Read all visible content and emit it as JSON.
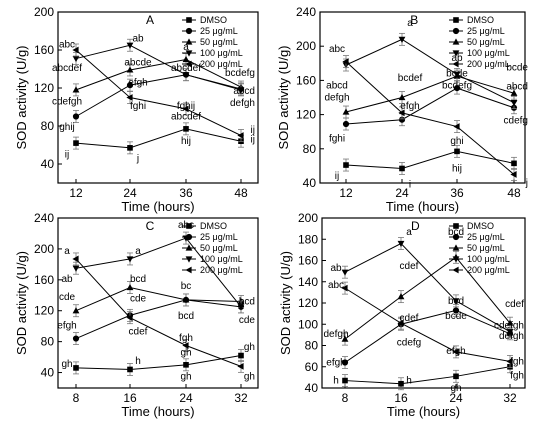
{
  "chart_data": [
    {
      "type": "line",
      "panel": "A",
      "title": "A",
      "xlabel": "Time (hours)",
      "ylabel": "SOD activity (U/g)",
      "categories": [
        "12",
        "24",
        "36",
        "48"
      ],
      "ylim": [
        20,
        200
      ],
      "yticks": [
        "40",
        "80",
        "120",
        "160",
        "200"
      ],
      "legend_position": "top-right",
      "series": [
        {
          "name": "DMSO",
          "marker": "square",
          "values": [
            62,
            57,
            77,
            64
          ]
        },
        {
          "name": "25  μg/mL",
          "marker": "circle",
          "values": [
            90,
            123,
            134,
            119
          ]
        },
        {
          "name": "50  μg/mL",
          "marker": "up-triangle",
          "values": [
            118,
            139,
            150,
            121
          ]
        },
        {
          "name": "100 μg/mL",
          "marker": "down-triangle",
          "values": [
            151,
            165,
            134,
            118
          ]
        },
        {
          "name": "200 μg/mL",
          "marker": "left-triangle",
          "values": [
            160,
            110,
            98,
            70
          ]
        }
      ],
      "annotations": [
        {
          "text": "abc",
          "x": 0,
          "y": 166
        },
        {
          "text": "abcdef",
          "x": 0,
          "y": 141
        },
        {
          "text": "cdefgh",
          "x": 0,
          "y": 106
        },
        {
          "text": "ghij",
          "x": 0,
          "y": 79
        },
        {
          "text": "ij",
          "x": 0,
          "y": 50
        },
        {
          "text": "ab",
          "x": 1,
          "y": 172
        },
        {
          "text": "abcde",
          "x": 1,
          "y": 147
        },
        {
          "text": "efgh",
          "x": 1,
          "y": 126
        },
        {
          "text": "fghi",
          "x": 1,
          "y": 101
        },
        {
          "text": "j",
          "x": 1,
          "y": 46
        },
        {
          "text": "a",
          "x": 2,
          "y": 163
        },
        {
          "text": "abcdef",
          "x": 2,
          "y": 141
        },
        {
          "text": "fghij",
          "x": 2,
          "y": 101
        },
        {
          "text": "abcdef",
          "x": 2,
          "y": 90
        },
        {
          "text": "hij",
          "x": 2,
          "y": 64
        },
        {
          "text": "bcdefg",
          "x": 3,
          "y": 136
        },
        {
          "text": "abcd",
          "x": 3,
          "y": 117
        },
        {
          "text": "defgh",
          "x": 3,
          "y": 104
        },
        {
          "text": "ij",
          "x": 3,
          "y": 76
        },
        {
          "text": "ij",
          "x": 3,
          "y": 66
        }
      ]
    },
    {
      "type": "line",
      "panel": "B",
      "title": "B",
      "xlabel": "Time (hours)",
      "ylabel": "SOD activity (U/g)",
      "categories": [
        "12",
        "24",
        "36",
        "48"
      ],
      "ylim": [
        40,
        240
      ],
      "yticks": [
        "40",
        "80",
        "120",
        "160",
        "200",
        "240"
      ],
      "legend_position": "top-right",
      "series": [
        {
          "name": "DMSO",
          "marker": "square",
          "values": [
            61,
            57,
            77,
            63
          ]
        },
        {
          "name": "25  μg/mL",
          "marker": "circle",
          "values": [
            109,
            114,
            151,
            128
          ]
        },
        {
          "name": "50  μg/mL",
          "marker": "up-triangle",
          "values": [
            123,
            140,
            165,
            145
          ]
        },
        {
          "name": "100 μg/mL",
          "marker": "down-triangle",
          "values": [
            178,
            208,
            167,
            134
          ]
        },
        {
          "name": "200 μg/mL",
          "marker": "left-triangle",
          "values": [
            182,
            122,
            106,
            50
          ]
        }
      ],
      "annotations": [
        {
          "text": "abc",
          "x": 0,
          "y": 197
        },
        {
          "text": "abcd",
          "x": 0,
          "y": 154
        },
        {
          "text": "defgh",
          "x": 0,
          "y": 140
        },
        {
          "text": "fghi",
          "x": 0,
          "y": 92
        },
        {
          "text": "ij",
          "x": 0,
          "y": 48
        },
        {
          "text": "a",
          "x": 1,
          "y": 227
        },
        {
          "text": "bcdef",
          "x": 1,
          "y": 163
        },
        {
          "text": "efgh",
          "x": 1,
          "y": 130
        },
        {
          "text": "i",
          "x": 1,
          "y": 38
        },
        {
          "text": "bcdefg",
          "x": 2,
          "y": 154
        },
        {
          "text": "ab",
          "x": 2,
          "y": 186
        },
        {
          "text": "bcde",
          "x": 2,
          "y": 168
        },
        {
          "text": "ghi",
          "x": 2,
          "y": 89
        },
        {
          "text": "hij",
          "x": 2,
          "y": 57
        },
        {
          "text": "bcde",
          "x": 3,
          "y": 175
        },
        {
          "text": "abcd",
          "x": 3,
          "y": 153
        },
        {
          "text": "cdefg",
          "x": 3,
          "y": 113
        },
        {
          "text": "j",
          "x": 3,
          "y": 40
        }
      ]
    },
    {
      "type": "line",
      "panel": "C",
      "title": "C",
      "xlabel": "Time (hours)",
      "ylabel": "SOD activity (U/g)",
      "categories": [
        "8",
        "16",
        "24",
        "32"
      ],
      "ylim": [
        20,
        240
      ],
      "yticks": [
        "40",
        "80",
        "120",
        "160",
        "200",
        "240"
      ],
      "legend_position": "top-right",
      "series": [
        {
          "name": "DMSO",
          "marker": "square",
          "values": [
            46,
            44,
            50,
            62
          ]
        },
        {
          "name": "25  μg/mL",
          "marker": "circle",
          "values": [
            84,
            114,
            134,
            125
          ]
        },
        {
          "name": "50  μg/mL",
          "marker": "up-triangle",
          "values": [
            120,
            150,
            134,
            132
          ]
        },
        {
          "name": "100 μg/mL",
          "marker": "down-triangle",
          "values": [
            175,
            187,
            214,
            125
          ]
        },
        {
          "name": "200 μg/mL",
          "marker": "left-triangle",
          "values": [
            187,
            111,
            75,
            48
          ]
        }
      ],
      "annotations": [
        {
          "text": "a",
          "x": 0,
          "y": 197
        },
        {
          "text": "ab",
          "x": 0,
          "y": 161
        },
        {
          "text": "cde",
          "x": 0,
          "y": 138
        },
        {
          "text": "efgh",
          "x": 0,
          "y": 101
        },
        {
          "text": "gh",
          "x": 0,
          "y": 51
        },
        {
          "text": "a",
          "x": 1,
          "y": 197
        },
        {
          "text": "bcd",
          "x": 1,
          "y": 161
        },
        {
          "text": "cde",
          "x": 1,
          "y": 136
        },
        {
          "text": "cdef",
          "x": 1,
          "y": 93
        },
        {
          "text": "h",
          "x": 1,
          "y": 55
        },
        {
          "text": "abc",
          "x": 2,
          "y": 231
        },
        {
          "text": "bc",
          "x": 2,
          "y": 152
        },
        {
          "text": "bcd",
          "x": 2,
          "y": 113
        },
        {
          "text": "fgh",
          "x": 2,
          "y": 85
        },
        {
          "text": "gh",
          "x": 2,
          "y": 66
        },
        {
          "text": "gh",
          "x": 2,
          "y": 35
        },
        {
          "text": "bcd",
          "x": 3,
          "y": 132
        },
        {
          "text": "cde",
          "x": 3,
          "y": 108
        },
        {
          "text": "gh",
          "x": 3,
          "y": 73
        },
        {
          "text": "gh",
          "x": 3,
          "y": 35
        }
      ]
    },
    {
      "type": "line",
      "panel": "D",
      "title": "D",
      "xlabel": "Time (hours)",
      "ylabel": "SOD activity (U/g)",
      "categories": [
        "8",
        "16",
        "24",
        "32"
      ],
      "ylim": [
        40,
        200
      ],
      "yticks": [
        "40",
        "60",
        "80",
        "100",
        "120",
        "140",
        "160",
        "180",
        "200"
      ],
      "legend_position": "top-right",
      "series": [
        {
          "name": "DMSO",
          "marker": "square",
          "values": [
            47,
            44,
            51,
            60
          ]
        },
        {
          "name": "25  μg/mL",
          "marker": "circle",
          "values": [
            64,
            100,
            113,
            91
          ]
        },
        {
          "name": "50  μg/mL",
          "marker": "up-triangle",
          "values": [
            86,
            126,
            163,
            101
          ]
        },
        {
          "name": "100 μg/mL",
          "marker": "down-triangle",
          "values": [
            149,
            176,
            122,
            93
          ]
        },
        {
          "name": "200 μg/mL",
          "marker": "left-triangle",
          "values": [
            134,
            101,
            74,
            65
          ]
        }
      ],
      "annotations": [
        {
          "text": "ab",
          "x": 0,
          "y": 153
        },
        {
          "text": "abc",
          "x": 0,
          "y": 137
        },
        {
          "text": "defgh",
          "x": 0,
          "y": 91
        },
        {
          "text": "efgh",
          "x": 0,
          "y": 64
        },
        {
          "text": "h",
          "x": 0,
          "y": 47
        },
        {
          "text": "a",
          "x": 1,
          "y": 187
        },
        {
          "text": "cdef",
          "x": 1,
          "y": 155
        },
        {
          "text": "cdef",
          "x": 1,
          "y": 106
        },
        {
          "text": "cdefg",
          "x": 1,
          "y": 83
        },
        {
          "text": "h",
          "x": 1,
          "y": 47
        },
        {
          "text": "bcd",
          "x": 2,
          "y": 187
        },
        {
          "text": "bcd",
          "x": 2,
          "y": 122
        },
        {
          "text": "bcde",
          "x": 2,
          "y": 108
        },
        {
          "text": "efgh",
          "x": 2,
          "y": 75
        },
        {
          "text": "gh",
          "x": 2,
          "y": 40
        },
        {
          "text": "cdef",
          "x": 3,
          "y": 119
        },
        {
          "text": "cdefgh",
          "x": 3,
          "y": 99
        },
        {
          "text": "defgh",
          "x": 3,
          "y": 89
        },
        {
          "text": "fgh",
          "x": 3,
          "y": 65
        },
        {
          "text": "fgh",
          "x": 3,
          "y": 52
        }
      ]
    }
  ]
}
